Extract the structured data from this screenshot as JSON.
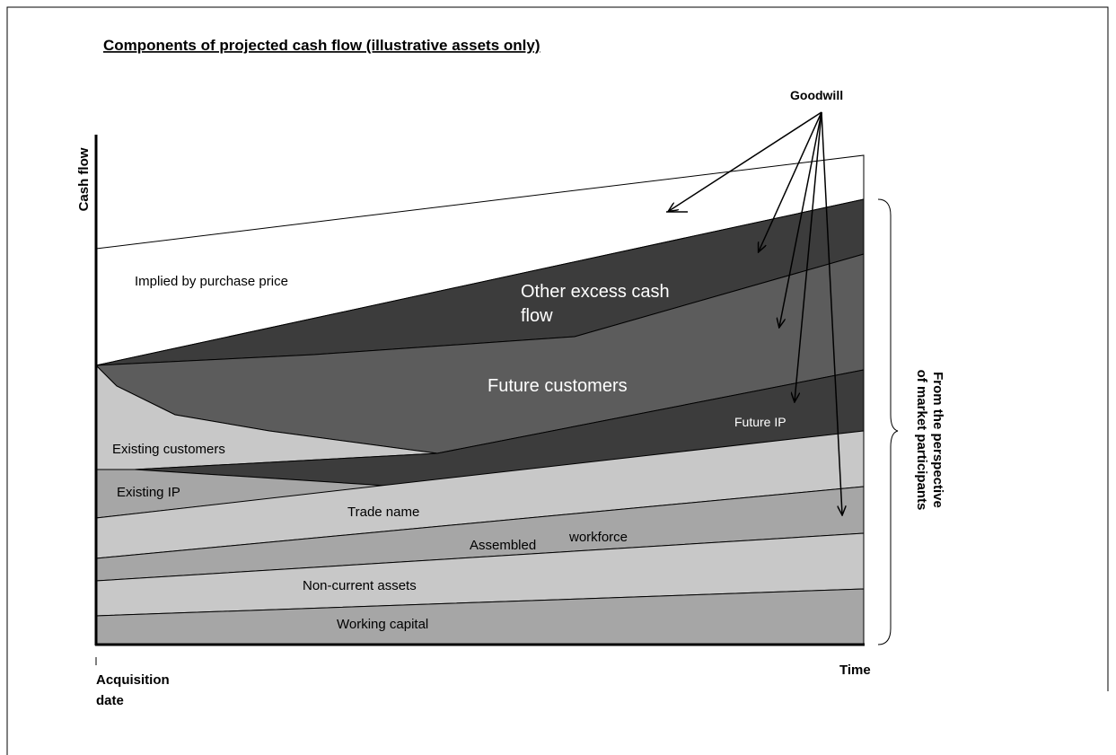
{
  "title": "Components of projected cash flow (illustrative assets only)",
  "y_axis_label": "Cash flow",
  "x_axis_label": "Time",
  "origin_label": [
    "Acquisition",
    "date"
  ],
  "callout": "Goodwill",
  "brace_label": [
    "From the perspective",
    "of market participants"
  ],
  "regions": {
    "implied": "Implied by purchase price",
    "other_excess": [
      "Other excess cash",
      "flow"
    ],
    "future_customers": "Future customers",
    "future_ip": "Future IP",
    "existing_customers": "Existing customers",
    "existing_ip": "Existing IP",
    "trade_name": "Trade name",
    "assembled_workforce": [
      "Assembled",
      "workforce"
    ],
    "non_current_assets": "Non-current assets",
    "working_capital": "Working capital"
  }
}
